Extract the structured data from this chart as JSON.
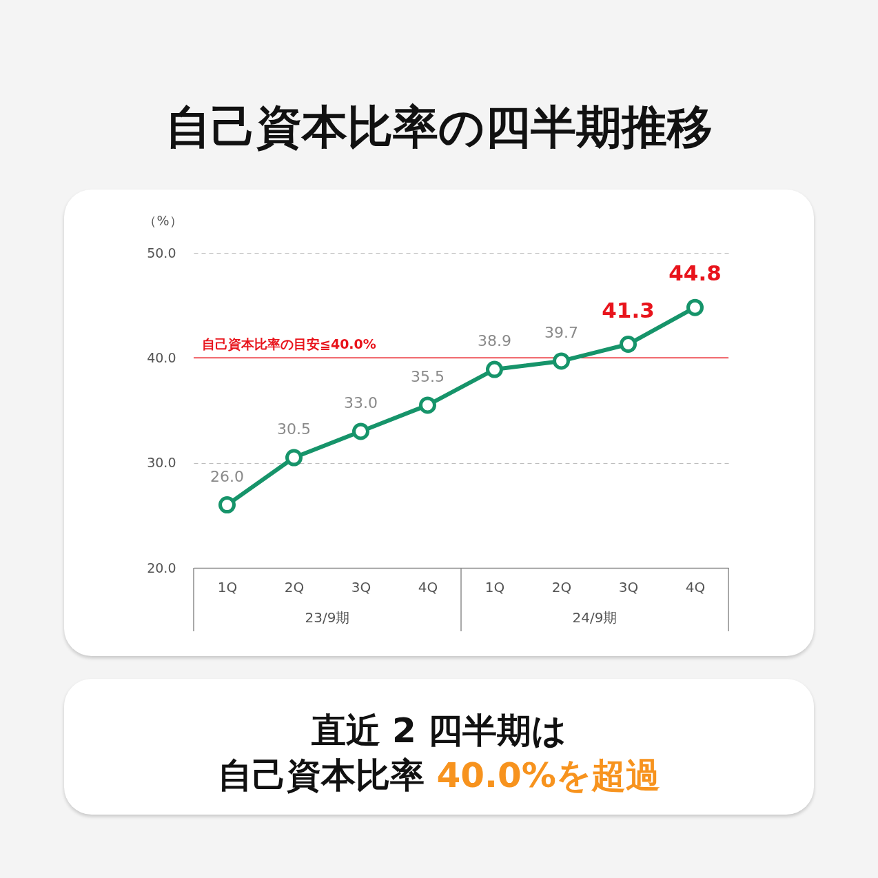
{
  "chart_data": {
    "type": "line",
    "title": "自己資本比率の四半期推移",
    "ylabel": "（%）",
    "categories": [
      "1Q",
      "2Q",
      "3Q",
      "4Q",
      "1Q",
      "2Q",
      "3Q",
      "4Q"
    ],
    "series": [
      {
        "color": "#16946a",
        "values": [
          26.0,
          30.5,
          33.0,
          35.5,
          38.9,
          39.7,
          41.3,
          44.8
        ],
        "value_labels": [
          "26.0",
          "30.5",
          "33.0",
          "35.5",
          "38.9",
          "39.7",
          "41.3",
          "44.8"
        ]
      }
    ],
    "ylim": [
      20,
      50
    ],
    "yticks": [
      {
        "value": 20,
        "label": "20.0"
      },
      {
        "value": 30,
        "label": "30.0"
      },
      {
        "value": 40,
        "label": "40.0"
      },
      {
        "value": 50,
        "label": "50.0"
      }
    ],
    "grid": "y",
    "marker": "circle",
    "line_style": "solid",
    "ref_lines": [
      {
        "axis": "y",
        "value": 40,
        "label": "自己資本比率の目安≦40.0%",
        "color": "#e8141c"
      }
    ],
    "annotations": [
      "23/9期",
      "24/9期",
      "直近 2 四半期は",
      "自己資本比率",
      "40.0%を超過"
    ]
  }
}
